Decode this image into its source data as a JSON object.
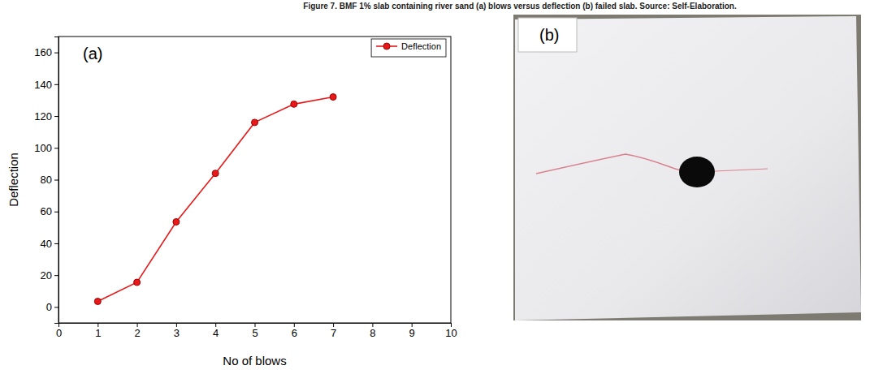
{
  "caption": "Figure 7. BMF 1% slab containing river sand (a) blows versus deflection (b) failed slab. Source: Self-Elaboration.",
  "chart_data": {
    "type": "line",
    "panel_label": "(a)",
    "x_label": "No of blows",
    "y_label": "Deflection",
    "x": [
      1,
      2,
      3,
      4,
      5,
      6,
      7
    ],
    "series": [
      {
        "name": "Deflection",
        "color": "#e8191a",
        "marker": "circle",
        "line_style": "solid",
        "values": [
          3.5,
          15.5,
          53.5,
          84,
          116,
          127.5,
          132
        ]
      }
    ],
    "xlim": [
      0,
      10
    ],
    "xticks": [
      0,
      1,
      2,
      3,
      4,
      5,
      6,
      7,
      8,
      9,
      10
    ],
    "ylim": [
      -10,
      170
    ],
    "yticks": [
      0,
      20,
      40,
      60,
      80,
      100,
      120,
      140,
      160
    ],
    "legend": "upper right"
  },
  "photo": {
    "panel_label": "(b)"
  }
}
